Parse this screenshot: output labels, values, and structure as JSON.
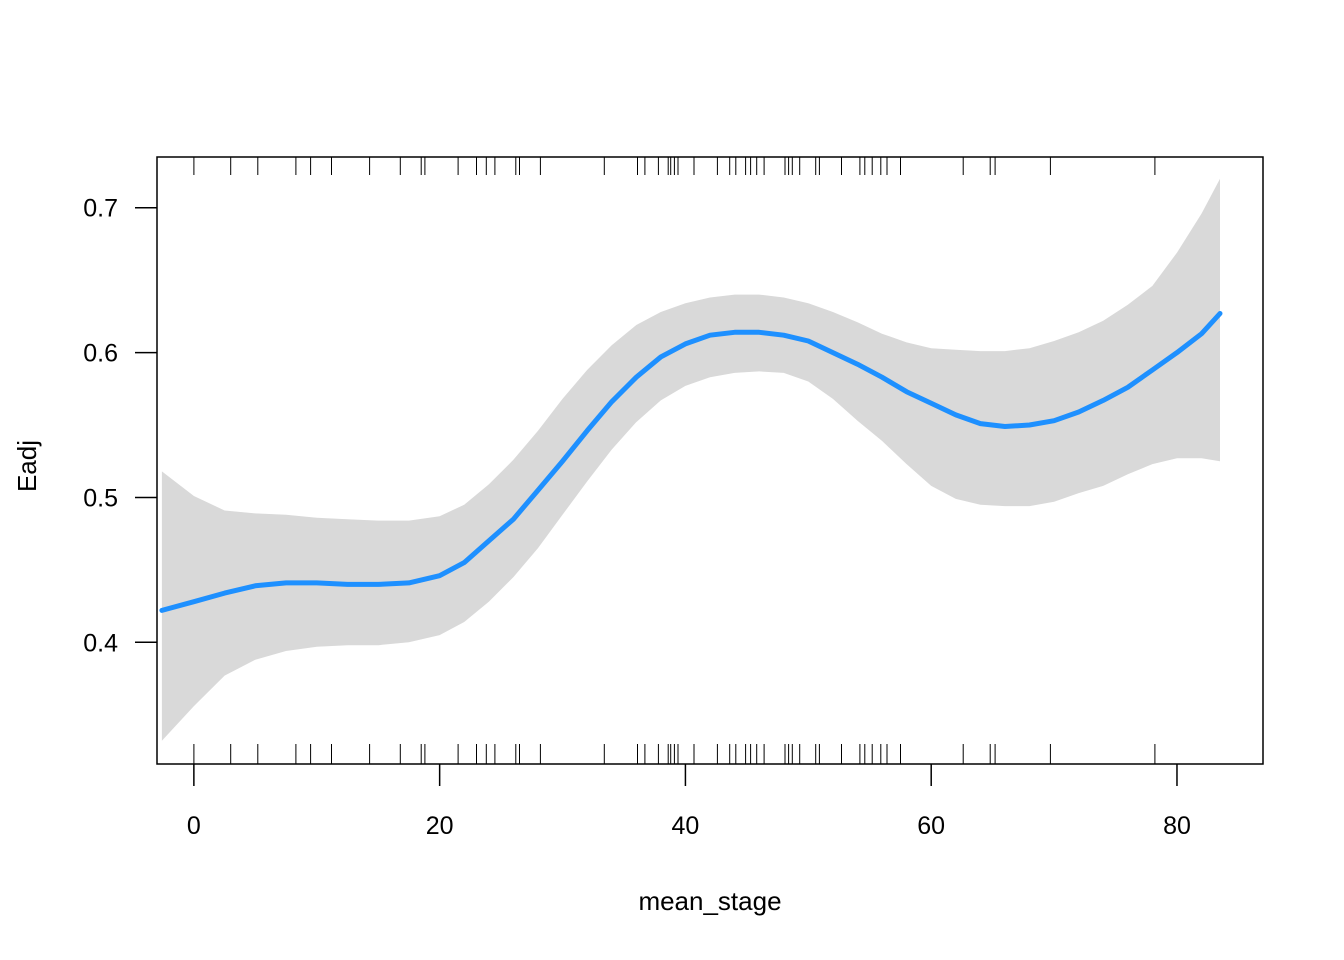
{
  "chart_data": {
    "type": "line",
    "title": "",
    "xlabel": "mean_stage",
    "ylabel": "Eadj",
    "xlim": [
      -3.0,
      87.0
    ],
    "ylim": [
      0.316,
      0.735
    ],
    "x_ticks": [
      0,
      20,
      40,
      60,
      80
    ],
    "y_ticks": [
      0.4,
      0.5,
      0.6,
      0.7
    ],
    "grid": false,
    "line_color": "#1E90FF",
    "band_color": "#D9D9D9",
    "series": [
      {
        "x": [
          -2.6,
          0,
          2.5,
          5,
          7.5,
          10,
          12.5,
          15,
          17.5,
          20,
          22,
          24,
          26,
          28,
          30,
          32,
          34,
          36,
          38,
          40,
          42,
          44,
          46,
          48,
          50,
          52,
          54,
          56,
          58,
          60,
          62,
          64,
          66,
          68,
          70,
          72,
          74,
          76,
          78,
          80,
          82,
          83.5
        ],
        "y": [
          0.422,
          0.428,
          0.434,
          0.439,
          0.441,
          0.441,
          0.44,
          0.44,
          0.441,
          0.446,
          0.455,
          0.47,
          0.485,
          0.505,
          0.525,
          0.546,
          0.566,
          0.583,
          0.597,
          0.606,
          0.612,
          0.614,
          0.614,
          0.612,
          0.608,
          0.6,
          0.592,
          0.583,
          0.573,
          0.565,
          0.557,
          0.551,
          0.549,
          0.55,
          0.553,
          0.559,
          0.567,
          0.576,
          0.588,
          0.6,
          0.613,
          0.627
        ],
        "lower": [
          0.332,
          0.356,
          0.377,
          0.388,
          0.394,
          0.397,
          0.398,
          0.398,
          0.4,
          0.405,
          0.414,
          0.428,
          0.445,
          0.465,
          0.488,
          0.511,
          0.533,
          0.552,
          0.567,
          0.577,
          0.583,
          0.586,
          0.587,
          0.586,
          0.58,
          0.568,
          0.553,
          0.539,
          0.523,
          0.508,
          0.499,
          0.495,
          0.494,
          0.494,
          0.497,
          0.503,
          0.508,
          0.516,
          0.523,
          0.527,
          0.527,
          0.525
        ],
        "upper": [
          0.518,
          0.501,
          0.491,
          0.489,
          0.488,
          0.486,
          0.485,
          0.484,
          0.484,
          0.487,
          0.495,
          0.509,
          0.526,
          0.546,
          0.568,
          0.588,
          0.605,
          0.619,
          0.628,
          0.634,
          0.638,
          0.64,
          0.64,
          0.638,
          0.634,
          0.628,
          0.621,
          0.613,
          0.607,
          0.603,
          0.602,
          0.601,
          0.601,
          0.603,
          0.608,
          0.614,
          0.622,
          0.633,
          0.646,
          0.669,
          0.696,
          0.72
        ]
      }
    ],
    "rug_bottom": [
      0,
      3,
      5.2,
      8.3,
      9.5,
      11.2,
      14.3,
      16.8,
      18.5,
      18.8,
      21.5,
      23,
      23.8,
      24.5,
      26.2,
      26.5,
      28.2,
      33.4,
      36.1,
      36.7,
      37.8,
      38.6,
      38.8,
      39.1,
      39.4,
      40.7,
      42.6,
      43.6,
      44.1,
      44.9,
      45.3,
      45.8,
      46.4,
      48.1,
      48.4,
      48.7,
      49.3,
      50.6,
      50.9,
      52.7,
      54.2,
      54.6,
      55.2,
      55.9,
      56.4,
      57.5,
      62.6,
      64.8,
      65.2,
      69.7,
      78.2
    ]
  }
}
